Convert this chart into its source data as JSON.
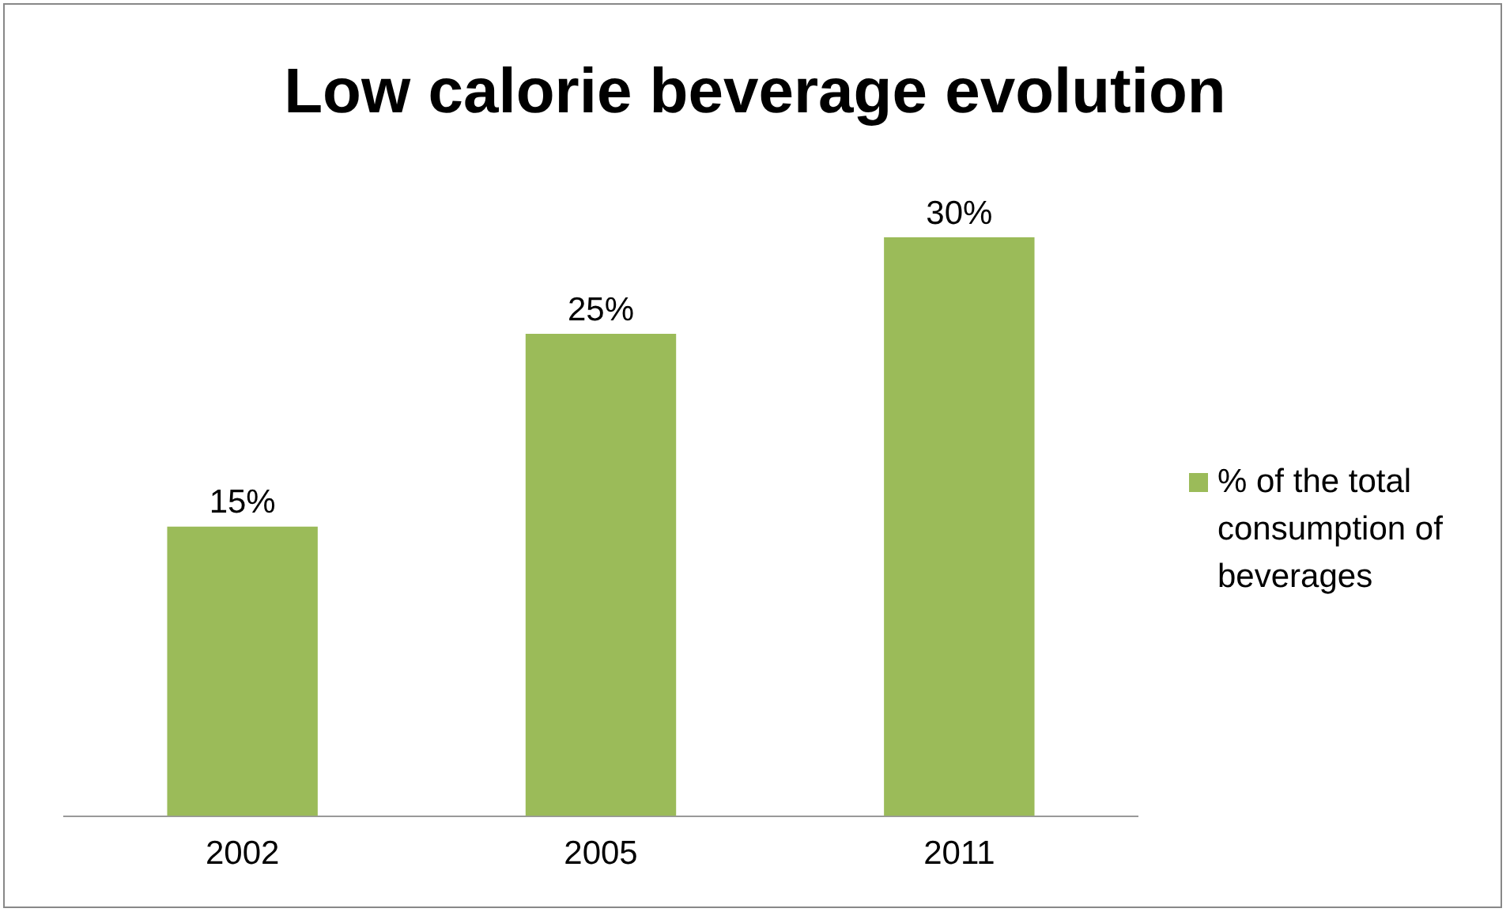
{
  "chart_data": {
    "type": "bar",
    "title": "Low calorie beverage evolution",
    "categories": [
      "2002",
      "2005",
      "2011"
    ],
    "series": [
      {
        "name": "% of the total consumption of beverages",
        "color": "#9bbb59",
        "values": [
          15,
          25,
          30
        ],
        "value_labels": [
          "15%",
          "25%",
          "30%"
        ]
      }
    ],
    "legend": "right",
    "grid": false
  }
}
